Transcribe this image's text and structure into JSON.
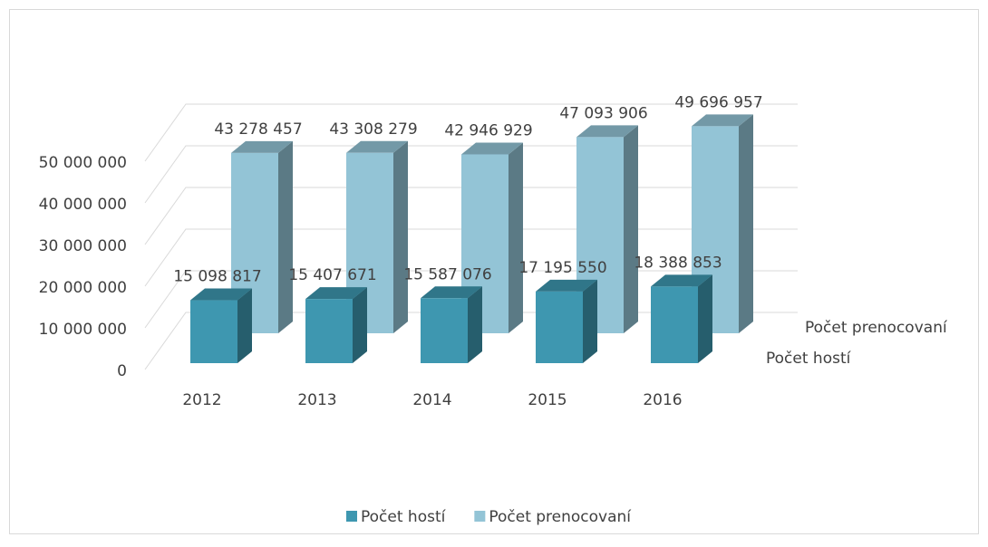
{
  "chart_data": {
    "type": "bar3d",
    "categories": [
      "2012",
      "2013",
      "2014",
      "2015",
      "2016"
    ],
    "series": [
      {
        "name": "Počet hostí",
        "color": "#3e97b0",
        "values": [
          15098817,
          15407671,
          15587076,
          17195550,
          18388853
        ],
        "value_labels": [
          "15 098 817",
          "15 407 671",
          "15 587 076",
          "17 195 550",
          "18 388 853"
        ]
      },
      {
        "name": "Počet prenocovaní",
        "color": "#93c4d6",
        "values": [
          43278457,
          43308279,
          42946929,
          47093906,
          49696957
        ],
        "value_labels": [
          "43 278 457",
          "43 308 279",
          "42 946 929",
          "47 093 906",
          "49 696 957"
        ]
      }
    ],
    "ylim": [
      0,
      50000000
    ],
    "yticks": [
      0,
      {
        "value": 10000000,
        "label": "10 000 000"
      },
      {
        "value": 20000000,
        "label": "20 000 000"
      },
      {
        "value": 30000000,
        "label": "30 000 000"
      },
      {
        "value": 40000000,
        "label": "40 000 000"
      },
      {
        "value": 50000000,
        "label": "50 000 000"
      }
    ],
    "grid": true,
    "legend": "bottom"
  }
}
